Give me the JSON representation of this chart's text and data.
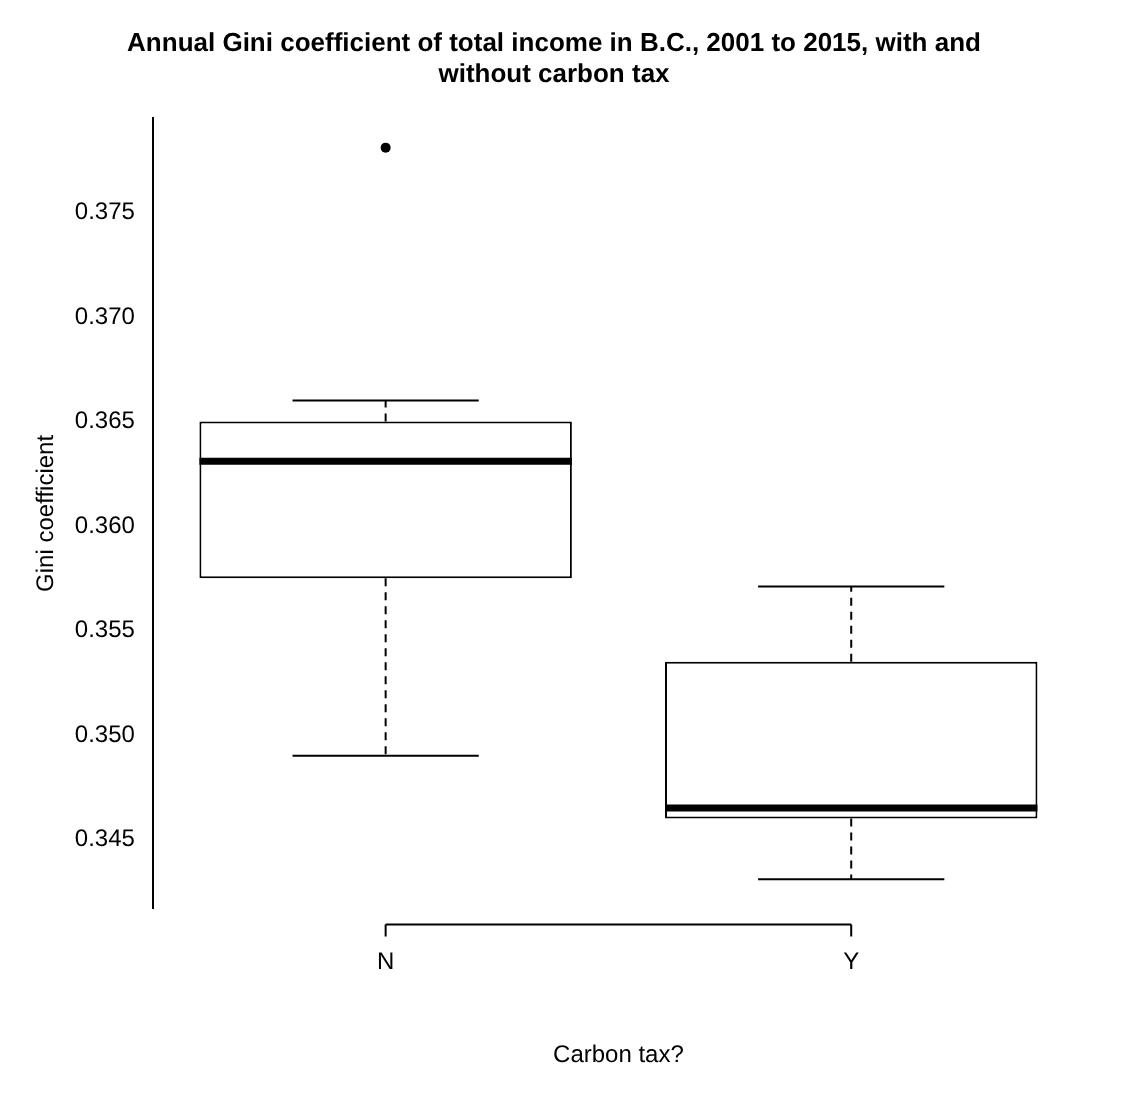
{
  "chart_data": {
    "type": "box",
    "title": "Annual Gini coefficient of total income in B.C., 2001 to 2015, with and without carbon tax",
    "xlabel": "Carbon tax?",
    "ylabel": "Gini coefficient",
    "categories": [
      "N",
      "Y"
    ],
    "boxes": [
      {
        "low": 0.349,
        "q1": 0.3575,
        "median": 0.3631,
        "q3": 0.365,
        "high": 0.366,
        "outliers": [
          0.3781
        ]
      },
      {
        "low": 0.3431,
        "q1": 0.346,
        "median": 0.3465,
        "q3": 0.3535,
        "high": 0.3571
      }
    ],
    "color": "#000000",
    "ylim": [
      0.3417,
      0.3795
    ],
    "yticks": [
      0.345,
      {
        "value": 0.35,
        "label": "0.350"
      },
      0.355,
      {
        "value": 0.36,
        "label": "0.360"
      },
      0.365,
      {
        "value": 0.37,
        "label": "0.370"
      },
      0.375
    ],
    "grid": false,
    "legend": false
  }
}
